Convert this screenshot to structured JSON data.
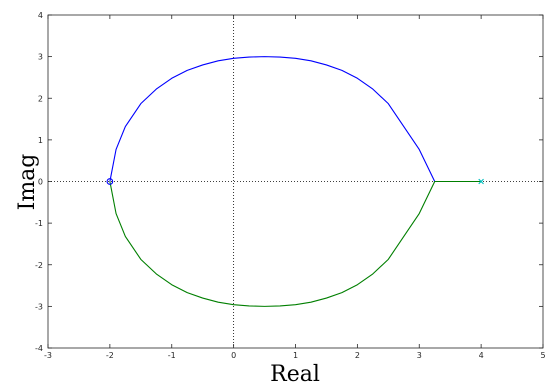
{
  "chart_data": {
    "type": "line",
    "title": "",
    "xlabel": "Real",
    "ylabel": "Imag",
    "xlim": [
      -3,
      5
    ],
    "ylim": [
      -4,
      4
    ],
    "xticks": [
      -3,
      -2,
      -1,
      0,
      1,
      2,
      3,
      4,
      5
    ],
    "yticks": [
      -4,
      -3,
      -2,
      -1,
      0,
      1,
      2,
      3,
      4
    ],
    "grid": false,
    "legend": "none",
    "reference_lines": {
      "x": 0,
      "y": 0,
      "style": "dotted",
      "color": "#000000"
    },
    "series": [
      {
        "color": "#0000ff",
        "x": [
          -2.0,
          -1.9,
          -1.75,
          -1.5,
          -1.25,
          -1.0,
          -0.75,
          -0.5,
          -0.25,
          0.0,
          0.25,
          0.5,
          0.75,
          1.0,
          1.25,
          1.5,
          1.75,
          2.0,
          2.25,
          2.5,
          2.75,
          3.0,
          3.25,
          3.5,
          3.75,
          3.9,
          4.0
        ],
        "y": [
          0.0,
          0.77,
          1.32,
          1.87,
          2.22,
          2.48,
          2.67,
          2.8,
          2.9,
          2.96,
          2.99,
          3.0,
          2.99,
          2.96,
          2.9,
          2.8,
          2.67,
          2.48,
          2.22,
          1.87,
          1.32,
          0.77,
          0.0,
          0.0,
          0.0,
          0.0,
          0.0
        ]
      },
      {
        "color": "#007f00",
        "x": [
          -2.0,
          -1.9,
          -1.75,
          -1.5,
          -1.25,
          -1.0,
          -0.75,
          -0.5,
          -0.25,
          0.0,
          0.25,
          0.5,
          0.75,
          1.0,
          1.25,
          1.5,
          1.75,
          2.0,
          2.25,
          2.5,
          2.75,
          3.0,
          3.25,
          3.5,
          3.75,
          3.9,
          4.0
        ],
        "y": [
          0.0,
          -0.77,
          -1.32,
          -1.87,
          -2.22,
          -2.48,
          -2.67,
          -2.8,
          -2.9,
          -2.96,
          -2.99,
          -3.0,
          -2.99,
          -2.96,
          -2.9,
          -2.8,
          -2.67,
          -2.48,
          -2.22,
          -1.87,
          -1.32,
          -0.77,
          0.0,
          0.0,
          0.0,
          0.0,
          0.0
        ]
      }
    ],
    "markers": [
      {
        "symbol": "o",
        "x": -2,
        "y": 0,
        "color": "#0000ff"
      },
      {
        "symbol": "x",
        "x": 4,
        "y": 0,
        "color": "#00bfbf"
      }
    ]
  }
}
